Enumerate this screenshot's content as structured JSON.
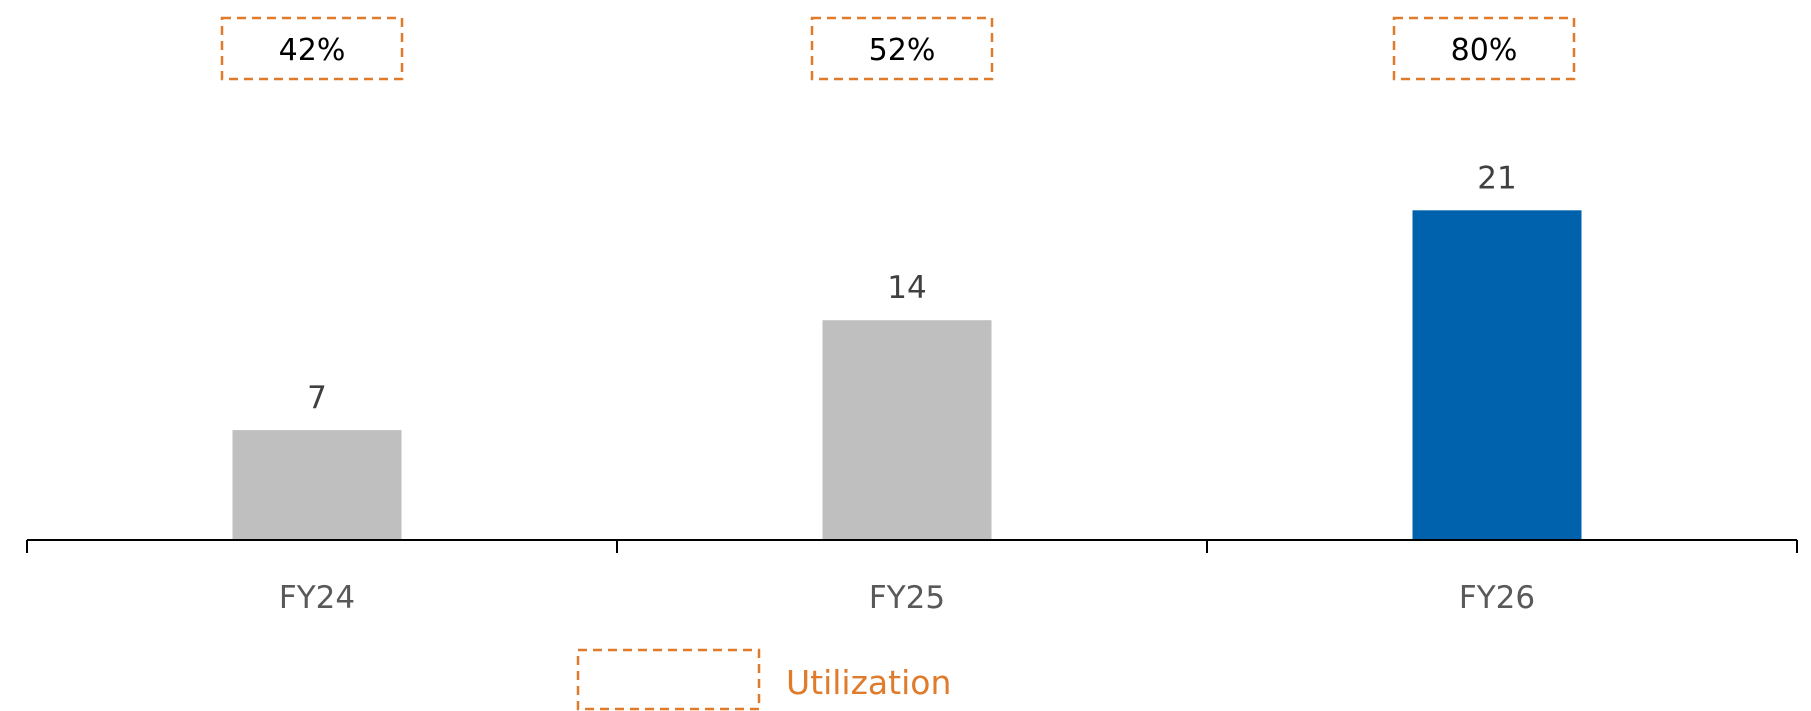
{
  "chart_data": {
    "type": "bar",
    "categories": [
      "FY24",
      "FY25",
      "FY26"
    ],
    "values": [
      7,
      14,
      21
    ],
    "data_labels": [
      "7",
      "14",
      "21"
    ],
    "utilization": [
      "42%",
      "52%",
      "80%"
    ],
    "legend": {
      "label": "Utilization",
      "placement": "bottom-center"
    },
    "title": "",
    "xlabel": "",
    "ylabel": "",
    "ylim": [
      0,
      25
    ],
    "grid": false,
    "colors": {
      "bar_default": "#BFBFBF",
      "bar_highlight": "#0062AD",
      "utilization_border": "#E07B2C",
      "legend_text": "#E07B2C",
      "axis": "#000000"
    },
    "highlight_index": 2
  }
}
